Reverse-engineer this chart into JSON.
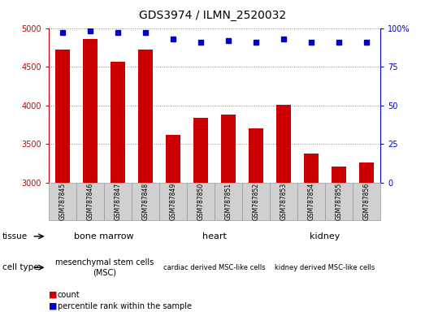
{
  "title": "GDS3974 / ILMN_2520032",
  "samples": [
    "GSM787845",
    "GSM787846",
    "GSM787847",
    "GSM787848",
    "GSM787849",
    "GSM787850",
    "GSM787851",
    "GSM787852",
    "GSM787853",
    "GSM787854",
    "GSM787855",
    "GSM787856"
  ],
  "counts": [
    4720,
    4860,
    4560,
    4720,
    3620,
    3840,
    3880,
    3700,
    4010,
    3380,
    3210,
    3260
  ],
  "percentile_ranks": [
    97,
    98,
    97,
    97,
    93,
    91,
    92,
    91,
    93,
    91,
    91,
    91
  ],
  "ylim_left": [
    3000,
    5000
  ],
  "ylim_right": [
    0,
    100
  ],
  "yticks_left": [
    3000,
    3500,
    4000,
    4500,
    5000
  ],
  "yticks_right": [
    0,
    25,
    50,
    75,
    100
  ],
  "bar_color": "#cc0000",
  "dot_color": "#0000cc",
  "tissue_groups": [
    {
      "label": "bone marrow",
      "start": 0,
      "end": 3,
      "color": "#99ff99"
    },
    {
      "label": "heart",
      "start": 4,
      "end": 7,
      "color": "#66ff66"
    },
    {
      "label": "kidney",
      "start": 8,
      "end": 11,
      "color": "#ff66ff"
    }
  ],
  "celltype_groups": [
    {
      "label": "mesenchymal stem cells\n(MSC)",
      "start": 0,
      "end": 3,
      "color": "#ffccff"
    },
    {
      "label": "cardiac derived MSC-like cells",
      "start": 4,
      "end": 7,
      "color": "#ff99ff"
    },
    {
      "label": "kidney derived MSC-like cells",
      "start": 8,
      "end": 11,
      "color": "#ff99ff"
    }
  ],
  "legend_count_color": "#cc0000",
  "legend_pct_color": "#0000cc",
  "xtick_bg_color": "#d0d0d0",
  "n_samples": 12
}
